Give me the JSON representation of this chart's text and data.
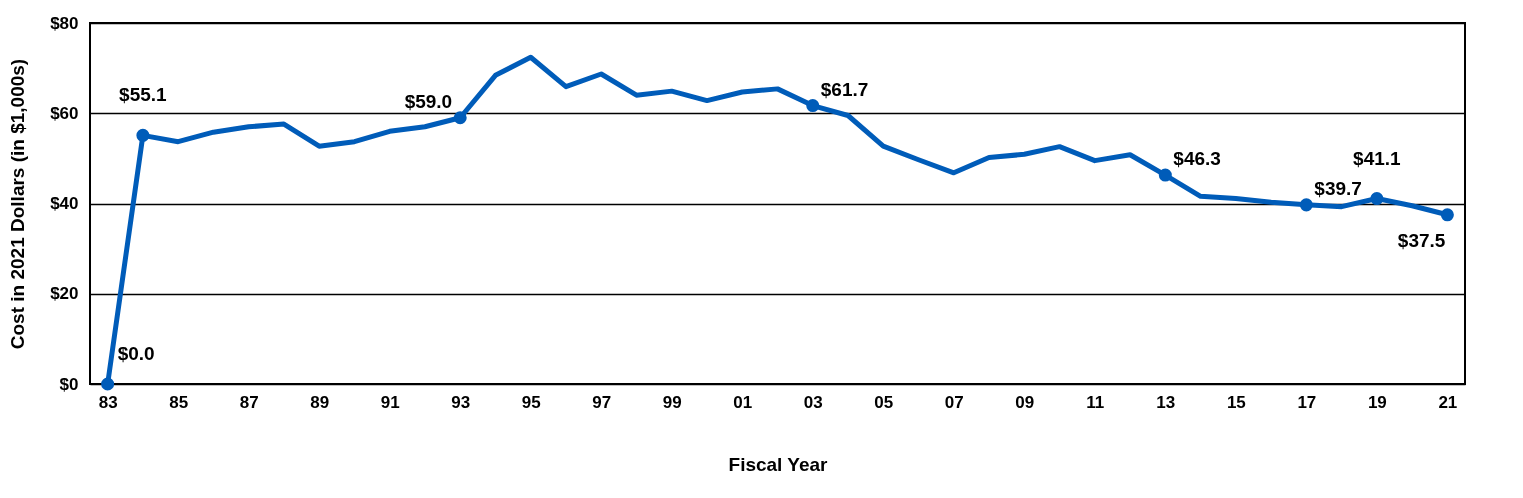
{
  "chart_data": {
    "type": "line",
    "xlabel": "Fiscal Year",
    "ylabel": "Cost in 2021 Dollars (in $1,000s)",
    "categories": [
      "83",
      null,
      "85",
      null,
      "87",
      null,
      "89",
      null,
      "91",
      null,
      "93",
      null,
      "95",
      null,
      "97",
      null,
      "99",
      null,
      "01",
      null,
      "03",
      null,
      "05",
      null,
      "07",
      null,
      "09",
      null,
      "11",
      null,
      "13",
      null,
      "15",
      null,
      "17",
      null,
      "19",
      null,
      "21"
    ],
    "series": [
      {
        "color": "#005cb9",
        "values": [
          0,
          55.1,
          53.7,
          55.8,
          57.0,
          57.6,
          52.7,
          53.7,
          56.0,
          57.0,
          59.0,
          68.4,
          72.4,
          65.9,
          68.7,
          64.0,
          64.9,
          62.8,
          64.7,
          65.4,
          61.7,
          59.5,
          52.7,
          49.7,
          46.8,
          50.2,
          50.9,
          52.6,
          49.5,
          50.8,
          46.3,
          41.6,
          41.1,
          40.3,
          39.7,
          39.3,
          41.1,
          39.5,
          37.5
        ],
        "value_labels": [
          "$0.0",
          "$55.1",
          null,
          null,
          null,
          null,
          null,
          null,
          null,
          null,
          "$59.0",
          null,
          null,
          null,
          null,
          null,
          null,
          null,
          null,
          null,
          "$61.7",
          null,
          null,
          null,
          null,
          null,
          null,
          null,
          null,
          null,
          "$46.3",
          null,
          null,
          null,
          "$39.7",
          null,
          "$41.1",
          null,
          "$37.5"
        ]
      }
    ],
    "ylim": [
      0,
      80
    ],
    "yticks": [
      {
        "value": 0,
        "label": "$0"
      },
      {
        "value": 20,
        "label": "$20"
      },
      {
        "value": 40,
        "label": "$40"
      },
      {
        "value": 60,
        "label": "$60"
      },
      {
        "value": 80,
        "label": "$80"
      }
    ],
    "grid": "y",
    "line_style": "solid"
  }
}
